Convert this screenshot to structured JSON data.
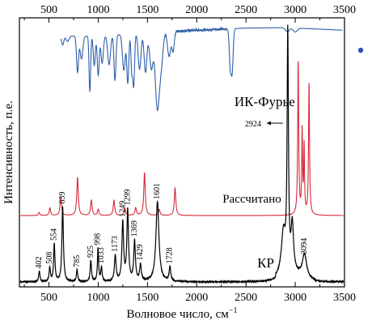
{
  "chart_data": {
    "type": "line",
    "xlabel": "Волновое число, см",
    "xlabel_sup": "−1",
    "ylabel": "Интенсивность, п.е.",
    "xlim": [
      200,
      3500
    ],
    "bottom_ticks": [
      500,
      1000,
      1500,
      2000,
      2500,
      3000,
      3500
    ],
    "top_ticks": [
      500,
      1000,
      1500,
      2000,
      2500,
      3000,
      3500
    ],
    "grid": false,
    "legend_marker": {
      "color": "#2a52be",
      "position": "top-right"
    },
    "series": [
      {
        "name": "ИК-Фурье",
        "color": "#2d5fa8",
        "label_x": 2690,
        "spectrum_type": "absorbance-transmittance",
        "range": [
          620,
          3480
        ],
        "baseline": [
          [
            620,
            0.84
          ],
          [
            700,
            0.86
          ],
          [
            1000,
            0.86
          ],
          [
            1500,
            0.9
          ],
          [
            2000,
            0.93
          ],
          [
            2500,
            0.955
          ],
          [
            2900,
            0.96
          ],
          [
            3100,
            0.95
          ],
          [
            3480,
            0.93
          ]
        ],
        "bands": [
          [
            640,
            0.12,
            10
          ],
          [
            690,
            0.08,
            14
          ],
          [
            790,
            0.55,
            10
          ],
          [
            830,
            0.35,
            14
          ],
          [
            915,
            0.85,
            8
          ],
          [
            960,
            0.45,
            10
          ],
          [
            1000,
            0.6,
            10
          ],
          [
            1040,
            0.42,
            12
          ],
          [
            1110,
            0.45,
            14
          ],
          [
            1170,
            0.7,
            10
          ],
          [
            1260,
            0.55,
            14
          ],
          [
            1300,
            0.75,
            10
          ],
          [
            1340,
            0.55,
            8
          ],
          [
            1360,
            0.8,
            9
          ],
          [
            1420,
            0.55,
            14
          ],
          [
            1480,
            0.6,
            14
          ],
          [
            1540,
            0.55,
            18
          ],
          [
            1600,
            1.15,
            20
          ],
          [
            1640,
            0.45,
            18
          ],
          [
            1720,
            0.38,
            16
          ],
          [
            1760,
            0.3,
            12
          ],
          [
            2340,
            0.55,
            10
          ],
          [
            2360,
            0.62,
            10
          ],
          [
            2920,
            0.06,
            20
          ],
          [
            3000,
            0.06,
            20
          ]
        ]
      },
      {
        "name": "Рассчитано",
        "color": "#d8283a",
        "label_x": 2560,
        "range": [
          210,
          3490
        ],
        "peaks": [
          [
            400,
            0.02,
            8
          ],
          [
            510,
            0.05,
            8
          ],
          [
            620,
            0.12,
            9
          ],
          [
            790,
            0.25,
            9
          ],
          [
            930,
            0.1,
            9
          ],
          [
            1000,
            0.04,
            8
          ],
          [
            1160,
            0.1,
            9
          ],
          [
            1270,
            0.05,
            9
          ],
          [
            1380,
            0.05,
            9
          ],
          [
            1470,
            0.28,
            9
          ],
          [
            1620,
            0.04,
            9
          ],
          [
            1780,
            0.18,
            9
          ],
          [
            3030,
            1.0,
            6
          ],
          [
            3070,
            0.54,
            5
          ],
          [
            3090,
            0.44,
            5
          ],
          [
            3140,
            0.86,
            6
          ]
        ]
      },
      {
        "name": "КР",
        "color": "#000000",
        "label_x": 2700,
        "range": [
          210,
          3490
        ],
        "peaks": [
          [
            402,
            0.045,
            8
          ],
          [
            508,
            0.06,
            8
          ],
          [
            554,
            0.16,
            8
          ],
          [
            639,
            0.32,
            9
          ],
          [
            785,
            0.05,
            8
          ],
          [
            925,
            0.09,
            8
          ],
          [
            998,
            0.14,
            7
          ],
          [
            1033,
            0.06,
            8
          ],
          [
            1173,
            0.11,
            10
          ],
          [
            1249,
            0.25,
            10
          ],
          [
            1299,
            0.3,
            10
          ],
          [
            1369,
            0.17,
            10
          ],
          [
            1429,
            0.07,
            10
          ],
          [
            1601,
            0.34,
            18
          ],
          [
            1728,
            0.06,
            10
          ],
          [
            2880,
            0.18,
            25
          ],
          [
            2924,
            1.0,
            8
          ],
          [
            2970,
            0.2,
            15
          ],
          [
            3094,
            0.1,
            25
          ]
        ]
      }
    ],
    "peak_labels": [
      "402",
      "508",
      "554",
      "639",
      "785",
      "925",
      "998",
      "1033",
      "1173",
      "1249",
      "1299",
      "1369",
      "1429",
      "1601",
      "1728",
      "3094"
    ],
    "annotation": {
      "text": "2924",
      "x": 2924,
      "arrow": "left"
    }
  }
}
